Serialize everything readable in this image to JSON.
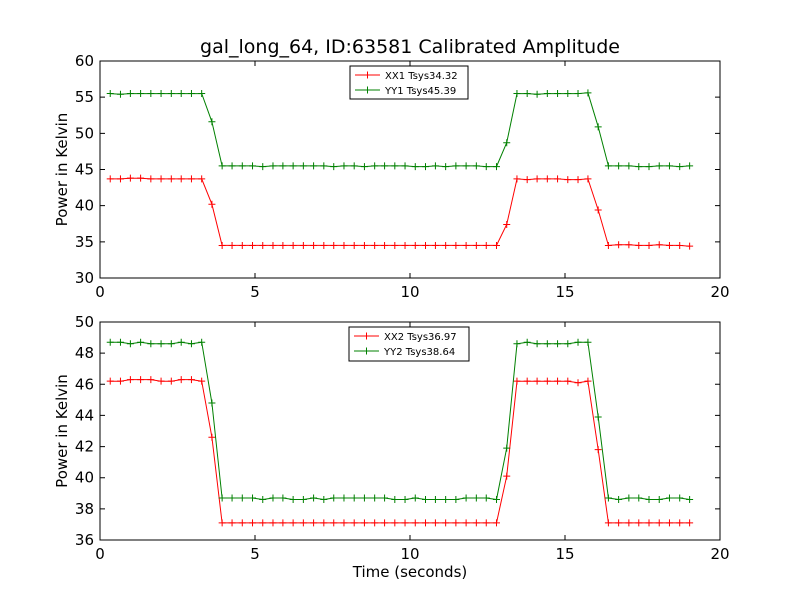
{
  "figure": {
    "title": "gal_long_64, ID:63581 Calibrated Amplitude"
  },
  "chart_data": [
    {
      "type": "line",
      "xlabel": "",
      "ylabel": "Power in Kelvin",
      "xlim": [
        0,
        20
      ],
      "ylim": [
        30,
        60
      ],
      "xticks": [
        0,
        5,
        10,
        15,
        20
      ],
      "yticks": [
        30,
        35,
        40,
        45,
        50,
        55,
        60
      ],
      "grid": false,
      "legend_position": "top-center",
      "x": [
        0.33,
        0.66,
        0.98,
        1.31,
        1.64,
        1.97,
        2.3,
        2.62,
        2.95,
        3.28,
        3.61,
        3.94,
        4.26,
        4.59,
        4.92,
        5.25,
        5.58,
        5.9,
        6.23,
        6.56,
        6.89,
        7.22,
        7.54,
        7.87,
        8.2,
        8.53,
        8.86,
        9.18,
        9.51,
        9.84,
        10.17,
        10.5,
        10.82,
        11.15,
        11.48,
        11.81,
        12.14,
        12.46,
        12.79,
        13.12,
        13.45,
        13.78,
        14.1,
        14.43,
        14.76,
        15.09,
        15.42,
        15.74,
        16.07,
        16.4,
        16.73,
        17.06,
        17.38,
        17.71,
        18.04,
        18.37,
        18.7,
        19.02
      ],
      "series": [
        {
          "name": "XX1 Tsys34.32",
          "color": "#ff0000",
          "marker": "+",
          "values": [
            43.7,
            43.7,
            43.8,
            43.8,
            43.7,
            43.7,
            43.7,
            43.7,
            43.7,
            43.7,
            40.2,
            34.5,
            34.5,
            34.5,
            34.5,
            34.5,
            34.5,
            34.5,
            34.5,
            34.5,
            34.5,
            34.5,
            34.5,
            34.5,
            34.5,
            34.5,
            34.5,
            34.5,
            34.5,
            34.5,
            34.5,
            34.5,
            34.5,
            34.5,
            34.5,
            34.5,
            34.5,
            34.5,
            34.5,
            37.4,
            43.7,
            43.6,
            43.7,
            43.7,
            43.7,
            43.6,
            43.6,
            43.7,
            39.4,
            34.5,
            34.6,
            34.6,
            34.5,
            34.5,
            34.6,
            34.5,
            34.5,
            34.4
          ]
        },
        {
          "name": "YY1 Tsys45.39",
          "color": "#008000",
          "marker": "+",
          "values": [
            55.5,
            55.4,
            55.5,
            55.5,
            55.5,
            55.5,
            55.5,
            55.5,
            55.5,
            55.5,
            51.6,
            45.5,
            45.5,
            45.5,
            45.5,
            45.4,
            45.5,
            45.5,
            45.5,
            45.5,
            45.5,
            45.5,
            45.4,
            45.5,
            45.5,
            45.4,
            45.5,
            45.5,
            45.5,
            45.5,
            45.4,
            45.4,
            45.5,
            45.4,
            45.5,
            45.5,
            45.5,
            45.4,
            45.4,
            48.7,
            55.5,
            55.5,
            55.4,
            55.5,
            55.5,
            55.5,
            55.5,
            55.6,
            50.9,
            45.5,
            45.5,
            45.5,
            45.4,
            45.4,
            45.5,
            45.5,
            45.4,
            45.5
          ]
        }
      ]
    },
    {
      "type": "line",
      "xlabel": "Time (seconds)",
      "ylabel": "Power in Kelvin",
      "xlim": [
        0,
        20
      ],
      "ylim": [
        36,
        50
      ],
      "xticks": [
        0,
        5,
        10,
        15,
        20
      ],
      "yticks": [
        36,
        38,
        40,
        42,
        44,
        46,
        48,
        50
      ],
      "grid": false,
      "legend_position": "top-center",
      "x": [
        0.33,
        0.66,
        0.98,
        1.31,
        1.64,
        1.97,
        2.3,
        2.62,
        2.95,
        3.28,
        3.61,
        3.94,
        4.26,
        4.59,
        4.92,
        5.25,
        5.58,
        5.9,
        6.23,
        6.56,
        6.89,
        7.22,
        7.54,
        7.87,
        8.2,
        8.53,
        8.86,
        9.18,
        9.51,
        9.84,
        10.17,
        10.5,
        10.82,
        11.15,
        11.48,
        11.81,
        12.14,
        12.46,
        12.79,
        13.12,
        13.45,
        13.78,
        14.1,
        14.43,
        14.76,
        15.09,
        15.42,
        15.74,
        16.07,
        16.4,
        16.73,
        17.06,
        17.38,
        17.71,
        18.04,
        18.37,
        18.7,
        19.02
      ],
      "series": [
        {
          "name": "XX2 Tsys36.97",
          "color": "#ff0000",
          "marker": "+",
          "values": [
            46.2,
            46.2,
            46.3,
            46.3,
            46.3,
            46.2,
            46.2,
            46.3,
            46.3,
            46.2,
            42.6,
            37.1,
            37.1,
            37.1,
            37.1,
            37.1,
            37.1,
            37.1,
            37.1,
            37.1,
            37.1,
            37.1,
            37.1,
            37.1,
            37.1,
            37.1,
            37.1,
            37.1,
            37.1,
            37.1,
            37.1,
            37.1,
            37.1,
            37.1,
            37.1,
            37.1,
            37.1,
            37.1,
            37.1,
            40.1,
            46.2,
            46.2,
            46.2,
            46.2,
            46.2,
            46.2,
            46.1,
            46.2,
            41.8,
            37.1,
            37.1,
            37.1,
            37.1,
            37.1,
            37.1,
            37.1,
            37.1,
            37.1
          ]
        },
        {
          "name": "YY2 Tsys38.64",
          "color": "#008000",
          "marker": "+",
          "values": [
            48.7,
            48.7,
            48.6,
            48.7,
            48.6,
            48.6,
            48.6,
            48.7,
            48.6,
            48.7,
            44.8,
            38.7,
            38.7,
            38.7,
            38.7,
            38.6,
            38.7,
            38.7,
            38.6,
            38.6,
            38.7,
            38.6,
            38.7,
            38.7,
            38.7,
            38.7,
            38.7,
            38.7,
            38.6,
            38.6,
            38.7,
            38.6,
            38.6,
            38.6,
            38.6,
            38.7,
            38.7,
            38.7,
            38.6,
            41.9,
            48.6,
            48.7,
            48.6,
            48.6,
            48.6,
            48.6,
            48.7,
            48.7,
            43.9,
            38.7,
            38.6,
            38.7,
            38.7,
            38.6,
            38.6,
            38.7,
            38.7,
            38.6
          ]
        }
      ]
    }
  ]
}
